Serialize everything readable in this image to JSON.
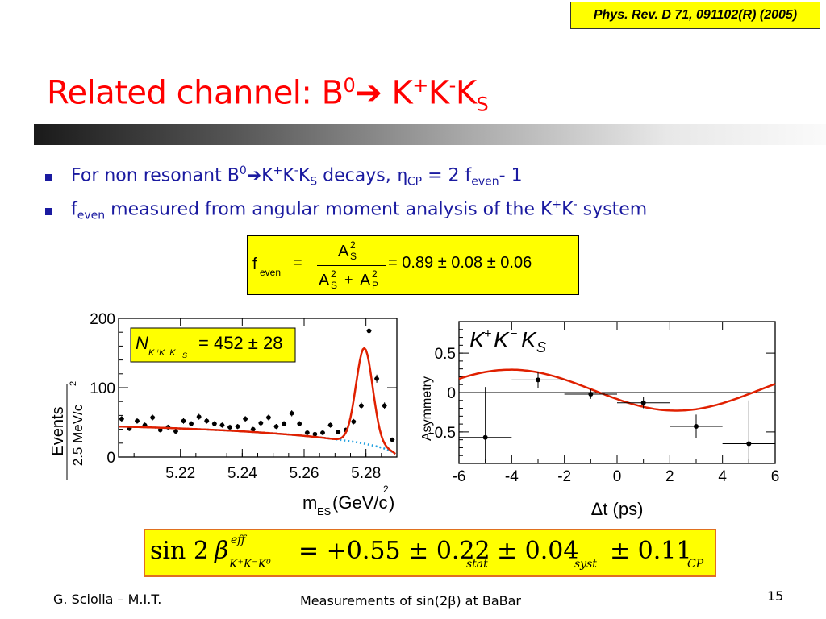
{
  "header": {
    "reference": "Phys. Rev. D 71, 091102(R) (2005)",
    "title": {
      "main": "Related channel: B",
      "sup0": "0",
      "arrow": "➔",
      "k": " K",
      "sup_plus": "+",
      "k2": "K",
      "sup_minus": "-",
      "k3": "K",
      "sub_s": "S"
    }
  },
  "bullets": [
    {
      "pre": "For non resonant B",
      "sup0": "0",
      "arrow": "➔",
      "k": "K",
      "sup_plus": "+",
      "k2": "K",
      "sup_minus": "-",
      "k3": "K",
      "sub_s": "S",
      "mid": " decays, ",
      "eta": "η",
      "sub_cp": "CP",
      "eq": " = 2 f",
      "sub_even": "even",
      "end": "- 1"
    },
    {
      "f": "f",
      "sub_even": "even",
      "text": " measured from angular moment analysis of the K",
      "sup_plus": "+",
      "k": "K",
      "sup_minus": "-",
      "end": " system"
    }
  ],
  "formula": {
    "lhs": "f",
    "lhs_sub": "even",
    "eq": "=",
    "num": "A",
    "num_sup": "2",
    "num_sub": "S",
    "den_a": "A",
    "den_a_sup": "2",
    "den_a_sub": "S",
    "plus": "+",
    "den_b": "A",
    "den_b_sup": "2",
    "den_b_sub": "P",
    "rhs": "= 0.89 ± 0.08 ± 0.06"
  },
  "result": {
    "sin": "sin 2",
    "beta": "β",
    "eff": "eff",
    "sub": "K⁺K⁻K⁰",
    "value": "= +0.55 ± 0.22",
    "stat": "stat",
    "syst_val": "± 0.04",
    "syst": "syst",
    "cp_val": "± 0.11",
    "cp": "CP"
  },
  "footer": {
    "author": "G. Sciolla – M.I.T.",
    "center_pre": "Measurements of sin(2",
    "center_beta": "β",
    "center_post": ") at BaBar",
    "page": "15"
  },
  "chart_data": [
    {
      "type": "scatter",
      "xlabel_main": "m",
      "xlabel_sub": "ES",
      "xlabel_unit": " (GeV/c",
      "xlabel_sup": "2",
      "xlabel_end": ")",
      "ylabel_top": "Events",
      "ylabel_bottom": "2.5 MeV/c",
      "ylabel_sup": "2",
      "annotation": {
        "n": "N",
        "sub": "K⁺K⁻K",
        "sub_s": "S",
        "value": "= 452 ± 28"
      },
      "xlim": [
        5.2,
        5.29
      ],
      "ylim": [
        0,
        200
      ],
      "xticks": [
        5.22,
        5.24,
        5.26,
        5.28
      ],
      "xticklabels": [
        "5.22",
        "5.24",
        "5.26",
        "5.28"
      ],
      "yticks": [
        0,
        100,
        200
      ],
      "yticklabels": [
        "0",
        "100",
        "200"
      ],
      "x": [
        5.201,
        5.2035,
        5.206,
        5.2085,
        5.211,
        5.2135,
        5.216,
        5.2185,
        5.221,
        5.2235,
        5.226,
        5.2285,
        5.231,
        5.2335,
        5.236,
        5.2385,
        5.241,
        5.2435,
        5.246,
        5.2485,
        5.251,
        5.2535,
        5.256,
        5.2585,
        5.261,
        5.2635,
        5.266,
        5.2685,
        5.271,
        5.2735,
        5.276,
        5.2785,
        5.281,
        5.2835,
        5.286,
        5.2885
      ],
      "y": [
        55,
        41,
        52,
        46,
        57,
        39,
        43,
        37,
        52,
        48,
        58,
        52,
        48,
        46,
        43,
        44,
        55,
        40,
        49,
        57,
        44,
        48,
        63,
        48,
        35,
        33,
        35,
        46,
        36,
        39,
        51,
        74,
        182,
        113,
        74,
        25
      ],
      "fit_color": "#e02000",
      "bkg_color": "#20a0e0"
    },
    {
      "type": "scatter",
      "title_k": "K",
      "title_sup_plus": "+",
      "title_k2": "K",
      "title_sup_minus": "−",
      "title_k3": "K",
      "title_sub": "S",
      "xlabel": "Δt (ps)",
      "ylabel": "Asymmetry",
      "xlim": [
        -6,
        6
      ],
      "ylim": [
        -0.9,
        0.9
      ],
      "xticks": [
        -6,
        -4,
        -2,
        0,
        2,
        4,
        6
      ],
      "xticklabels": [
        "-6",
        "-4",
        "-2",
        "0",
        "2",
        "4",
        "6"
      ],
      "yticks": [
        -0.5,
        0,
        0.5
      ],
      "yticklabels": [
        "-0.5",
        "0",
        "0.5"
      ],
      "x": [
        -5.0,
        -3.0,
        -1.0,
        1.0,
        3.0,
        5.0
      ],
      "y": [
        -0.57,
        0.16,
        -0.02,
        -0.13,
        -0.43,
        -0.65
      ],
      "x_err": [
        1.0,
        1.0,
        1.0,
        1.0,
        1.0,
        1.0
      ],
      "y_err": [
        0.64,
        0.1,
        0.06,
        0.07,
        0.15,
        0.55
      ],
      "fit_color": "#e02000"
    }
  ]
}
